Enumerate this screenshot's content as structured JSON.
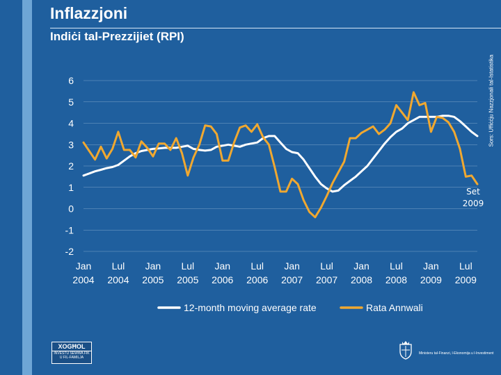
{
  "page": {
    "title": "Inflazzjoni",
    "subtitle": "Indiċi tal-Prezzijiet (RPI)",
    "source": "Sors: Uffiċċju Nazzjonali tal-Istatistika"
  },
  "branding": {
    "logo_main": "XOGĦOL",
    "logo_sub": "INVESTU SEWWA FIK U FIL-FAMILJA",
    "ministry": "Ministeru tal-Finanzi, l-Ekonomija u l-Investiment"
  },
  "colors": {
    "background": "#1f5f9e",
    "moving_average": "#ffffff",
    "annual_rate": "#f0a830",
    "grid": "#c8dbee"
  },
  "chart_data": {
    "type": "line",
    "title": "Indiċi tal-Prezzijiet (RPI)",
    "xlabel": "",
    "ylabel": "",
    "ylim": [
      -2,
      6
    ],
    "yticks": [
      -2,
      -1,
      0,
      1,
      2,
      3,
      4,
      5,
      6
    ],
    "grid": true,
    "legend_position": "bottom",
    "x_start": "Jan 2004",
    "x_end": "Sep 2009",
    "categories": [
      "Jan 2004",
      "Feb 2004",
      "Mar 2004",
      "Apr 2004",
      "May 2004",
      "Jun 2004",
      "Jul 2004",
      "Aug 2004",
      "Sep 2004",
      "Oct 2004",
      "Nov 2004",
      "Dec 2004",
      "Jan 2005",
      "Feb 2005",
      "Mar 2005",
      "Apr 2005",
      "May 2005",
      "Jun 2005",
      "Jul 2005",
      "Aug 2005",
      "Sep 2005",
      "Oct 2005",
      "Nov 2005",
      "Dec 2005",
      "Jan 2006",
      "Feb 2006",
      "Mar 2006",
      "Apr 2006",
      "May 2006",
      "Jun 2006",
      "Jul 2006",
      "Aug 2006",
      "Sep 2006",
      "Oct 2006",
      "Nov 2006",
      "Dec 2006",
      "Jan 2007",
      "Feb 2007",
      "Mar 2007",
      "Apr 2007",
      "May 2007",
      "Jun 2007",
      "Jul 2007",
      "Aug 2007",
      "Sep 2007",
      "Oct 2007",
      "Nov 2007",
      "Dec 2007",
      "Jan 2008",
      "Feb 2008",
      "Mar 2008",
      "Apr 2008",
      "May 2008",
      "Jun 2008",
      "Jul 2008",
      "Aug 2008",
      "Sep 2008",
      "Oct 2008",
      "Nov 2008",
      "Dec 2008",
      "Jan 2009",
      "Feb 2009",
      "Mar 2009",
      "Apr 2009",
      "May 2009",
      "Jun 2009",
      "Jul 2009",
      "Aug 2009",
      "Sep 2009"
    ],
    "x_tick_labels": [
      {
        "index": 0,
        "month": "Jan",
        "year": "2004"
      },
      {
        "index": 6,
        "month": "Lul",
        "year": "2004"
      },
      {
        "index": 12,
        "month": "Jan",
        "year": "2005"
      },
      {
        "index": 18,
        "month": "Lul",
        "year": "2005"
      },
      {
        "index": 24,
        "month": "Jan",
        "year": "2006"
      },
      {
        "index": 30,
        "month": "Lul",
        "year": "2006"
      },
      {
        "index": 36,
        "month": "Jan",
        "year": "2007"
      },
      {
        "index": 42,
        "month": "Lul",
        "year": "2007"
      },
      {
        "index": 48,
        "month": "Jan",
        "year": "2008"
      },
      {
        "index": 54,
        "month": "Lul",
        "year": "2008"
      },
      {
        "index": 60,
        "month": "Jan",
        "year": "2009"
      },
      {
        "index": 66,
        "month": "Lul",
        "year": "2009"
      }
    ],
    "series": [
      {
        "name": "12-month moving average rate",
        "color": "#ffffff",
        "values": [
          1.55,
          1.65,
          1.75,
          1.82,
          1.9,
          1.95,
          2.05,
          2.25,
          2.45,
          2.6,
          2.7,
          2.75,
          2.8,
          2.82,
          2.85,
          2.85,
          2.85,
          2.9,
          2.95,
          2.8,
          2.75,
          2.72,
          2.75,
          2.9,
          2.95,
          3.0,
          2.95,
          2.9,
          3.0,
          3.05,
          3.1,
          3.3,
          3.4,
          3.4,
          3.1,
          2.8,
          2.65,
          2.6,
          2.3,
          1.9,
          1.5,
          1.15,
          0.95,
          0.8,
          0.85,
          1.1,
          1.3,
          1.5,
          1.75,
          2.0,
          2.35,
          2.7,
          3.05,
          3.35,
          3.6,
          3.75,
          4.0,
          4.15,
          4.3,
          4.3,
          4.3,
          4.3,
          4.35,
          4.35,
          4.3,
          4.1,
          3.85,
          3.6,
          3.4
        ]
      },
      {
        "name": "Rata Annwali",
        "color": "#f0a830",
        "values": [
          3.1,
          2.7,
          2.3,
          2.9,
          2.35,
          2.8,
          3.6,
          2.75,
          2.75,
          2.4,
          3.15,
          2.85,
          2.45,
          3.05,
          3.05,
          2.75,
          3.3,
          2.6,
          1.55,
          2.4,
          3.0,
          3.9,
          3.85,
          3.5,
          2.25,
          2.25,
          3.1,
          3.8,
          3.9,
          3.6,
          3.95,
          3.35,
          3.0,
          1.95,
          0.8,
          0.8,
          1.4,
          1.15,
          0.4,
          -0.15,
          -0.4,
          0.05,
          0.6,
          1.2,
          1.7,
          2.2,
          3.3,
          3.3,
          3.55,
          3.7,
          3.85,
          3.5,
          3.7,
          4.0,
          4.85,
          4.5,
          4.15,
          5.45,
          4.85,
          4.95,
          3.6,
          4.3,
          4.25,
          4.05,
          3.6,
          2.8,
          1.5,
          1.55,
          1.15
        ]
      }
    ],
    "annotation": {
      "line1": "Set",
      "line2": "2009",
      "index": 68
    }
  }
}
